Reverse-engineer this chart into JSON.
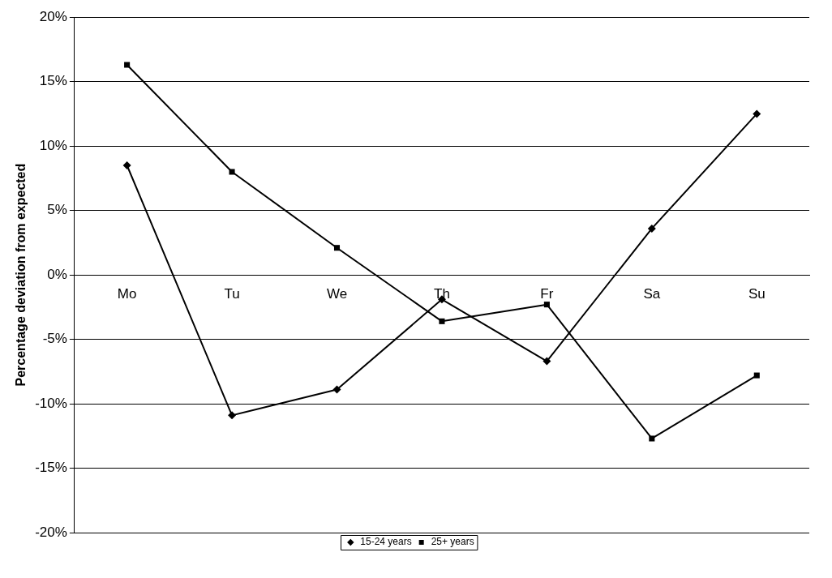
{
  "chart_data": {
    "type": "line",
    "ylabel": "Percentage deviation from expected",
    "categories": [
      "Mo",
      "Tu",
      "We",
      "Th",
      "Fr",
      "Sa",
      "Su"
    ],
    "series": [
      {
        "name": "15-24 years",
        "color": "#000000",
        "marker": "diamond",
        "values": [
          8.5,
          -10.9,
          -8.9,
          -1.9,
          -6.7,
          3.6,
          12.5
        ]
      },
      {
        "name": "25+ years",
        "color": "#000000",
        "marker": "square",
        "values": [
          16.3,
          8.0,
          2.1,
          -3.6,
          -2.3,
          -12.7,
          -7.8
        ]
      }
    ],
    "ylim": [
      -20,
      20
    ],
    "yticks": [
      {
        "value": -20,
        "label": "-20%"
      },
      {
        "value": -15,
        "label": "-15%"
      },
      {
        "value": -10,
        "label": "-10%"
      },
      {
        "value": -5,
        "label": "-5%"
      },
      {
        "value": 0,
        "label": "0%"
      },
      {
        "value": 5,
        "label": "5%"
      },
      {
        "value": 10,
        "label": "10%"
      },
      {
        "value": 15,
        "label": "15%"
      },
      {
        "value": 20,
        "label": "20%"
      }
    ],
    "grid": "y",
    "legend": "bottom",
    "line_style": "solid"
  }
}
